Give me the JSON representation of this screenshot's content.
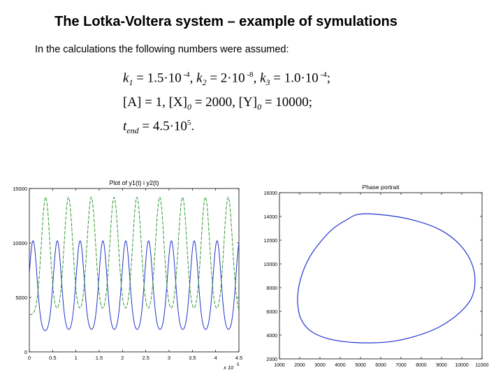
{
  "slide": {
    "title": "The Lotka-Voltera system – example of symulations",
    "intro": "In the calculations the following numbers were assumed:"
  },
  "equations": {
    "k1_sym": "k",
    "k1_sub": "1",
    "k1_val": " = 1.5·10",
    "k1_exp": " -4",
    "k2_sym": ", k",
    "k2_sub": "2",
    "k2_val": " = 2·10",
    "k2_exp": " -8",
    "k3_sym": ", k",
    "k3_sub": "3",
    "k3_val": " = 1.0·10",
    "k3_exp": " -4",
    "k_end": ";",
    "line2": "[A] = 1,  [X]",
    "line2_sub1": "0",
    "line2_mid": " = 2000, [Y]",
    "line2_sub2": "0",
    "line2_end": " = 10000;",
    "tend_sym": "t",
    "tend_sub": "end",
    "tend_val": " = 4.5·10",
    "tend_exp": "5",
    "tend_end": "."
  },
  "chart_data": [
    {
      "type": "line",
      "title": "Plot of y1(t) i y2(t)",
      "x_tick_labels": [
        "0",
        "0.5",
        "1",
        "1.5",
        "2",
        "2.5",
        "3",
        "3.5",
        "4",
        "4.5"
      ],
      "x_multiplier_label": "x 10",
      "x_multiplier_exp": "5",
      "y_tick_labels": [
        "0",
        "5000",
        "10000",
        "15000"
      ],
      "xlim": [
        0,
        450000
      ],
      "ylim": [
        0,
        15000
      ],
      "series": [
        {
          "color": "#2233cc",
          "peak_t": [
            8000,
            60000,
            109000,
            158000,
            207000,
            256000,
            305000,
            354000,
            403000,
            452000
          ],
          "min": 1800,
          "max": 10200,
          "width": 12000
        },
        {
          "color": "#2e9a2e",
          "peak_t": [
            35000,
            84000,
            133000,
            182000,
            231000,
            280000,
            329000,
            378000,
            427000
          ],
          "min": 3400,
          "max": 14200,
          "width": 13000
        }
      ]
    },
    {
      "type": "line",
      "title": "Phase portrait",
      "x_tick_labels": [
        "1000",
        "2000",
        "3000",
        "4000",
        "5000",
        "6000",
        "7000",
        "8000",
        "9000",
        "10000",
        "11000"
      ],
      "y_tick_labels": [
        "2000",
        "4000",
        "6000",
        "8000",
        "10000",
        "12000",
        "14000",
        "16000"
      ],
      "xlim": [
        1000,
        11000
      ],
      "ylim": [
        2000,
        16000
      ],
      "series": [
        {
          "color": "#2233cc",
          "x": [
            5000,
            6500,
            7800,
            8900,
            9800,
            10400,
            10650,
            10500,
            9900,
            8900,
            7700,
            6500,
            5300,
            4200,
            3200,
            2500,
            2050,
            1900,
            1950,
            2150,
            2500,
            3000,
            3600,
            4300,
            5000
          ],
          "y": [
            14200,
            14050,
            13600,
            12900,
            11800,
            10400,
            8800,
            7200,
            5900,
            4700,
            3900,
            3450,
            3350,
            3450,
            3800,
            4400,
            5400,
            6700,
            8000,
            9300,
            10600,
            11800,
            12900,
            13700,
            14200
          ]
        }
      ]
    }
  ]
}
